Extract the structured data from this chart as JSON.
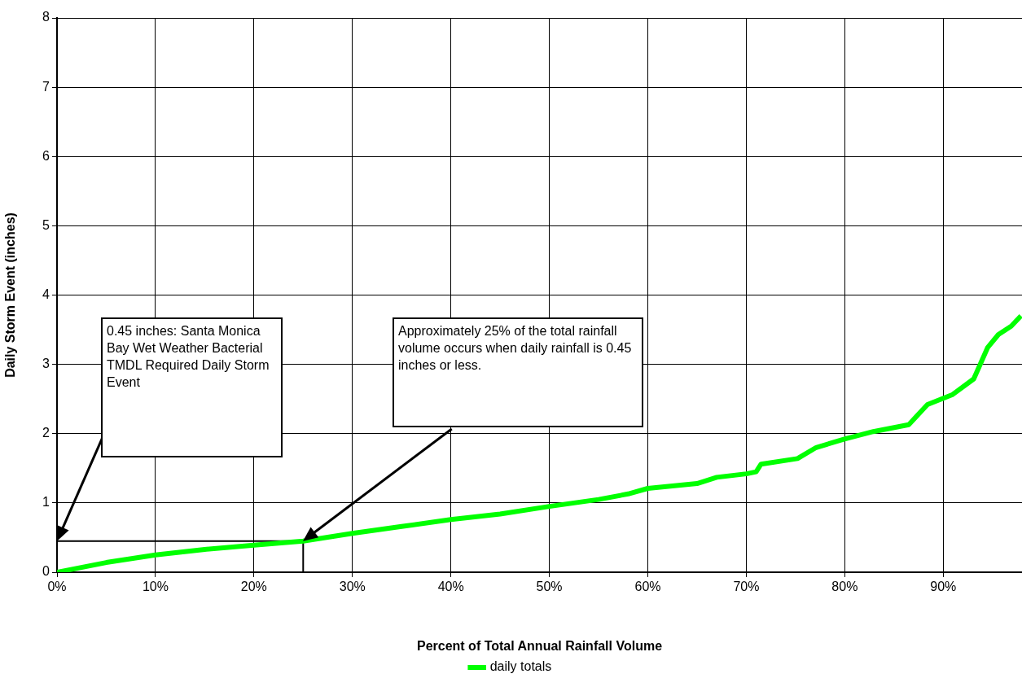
{
  "chart_data": {
    "type": "line",
    "xlabel": "Percent of Total Annual Rainfall Volume",
    "ylabel": "Daily Storm Event (inches)",
    "xlim": [
      0,
      98
    ],
    "xticks": [
      {
        "value": 0,
        "label": "0%"
      },
      {
        "value": 10,
        "label": "10%"
      },
      {
        "value": 20,
        "label": "20%"
      },
      {
        "value": 30,
        "label": "30%"
      },
      {
        "value": 40,
        "label": "40%"
      },
      {
        "value": 50,
        "label": "50%"
      },
      {
        "value": 60,
        "label": "60%"
      },
      {
        "value": 70,
        "label": "70%"
      },
      {
        "value": 80,
        "label": "80%"
      },
      {
        "value": 90,
        "label": "90%"
      }
    ],
    "ylim": [
      0,
      8
    ],
    "yticks": [
      0,
      1,
      2,
      3,
      4,
      5,
      6,
      7,
      8
    ],
    "grid": true,
    "legend": "bottom",
    "marker": "none",
    "line_style": "solid",
    "series": [
      {
        "name": "daily totals",
        "color": "#00ff00",
        "x": [
          0,
          5,
          10,
          15,
          20,
          25,
          30,
          35,
          40,
          45,
          50,
          55,
          58,
          60,
          65,
          67,
          70,
          71,
          71.5,
          75.2,
          77.1,
          79.9,
          82.9,
          86.5,
          88.4,
          90.9,
          93.1,
          94.5,
          95.6,
          96.9,
          97.9
        ],
        "values": [
          0,
          0.14,
          0.25,
          0.33,
          0.39,
          0.45,
          0.56,
          0.66,
          0.76,
          0.84,
          0.95,
          1.05,
          1.13,
          1.21,
          1.28,
          1.37,
          1.42,
          1.45,
          1.56,
          1.64,
          1.8,
          1.92,
          2.03,
          2.13,
          2.42,
          2.56,
          2.79,
          3.24,
          3.43,
          3.55,
          3.7
        ]
      },
      {
        "type": "line",
        "color": "#000000",
        "x": [
          0,
          25,
          25
        ],
        "values": [
          0.45,
          0.45,
          0
        ]
      }
    ],
    "annotations": [
      "0.45 inches:  Santa Monica Bay Wet Weather Bacterial TMDL Required Daily Storm Event",
      "Approximately 25% of the total rainfall volume occurs when daily rainfall is 0.45 inches or less."
    ]
  }
}
